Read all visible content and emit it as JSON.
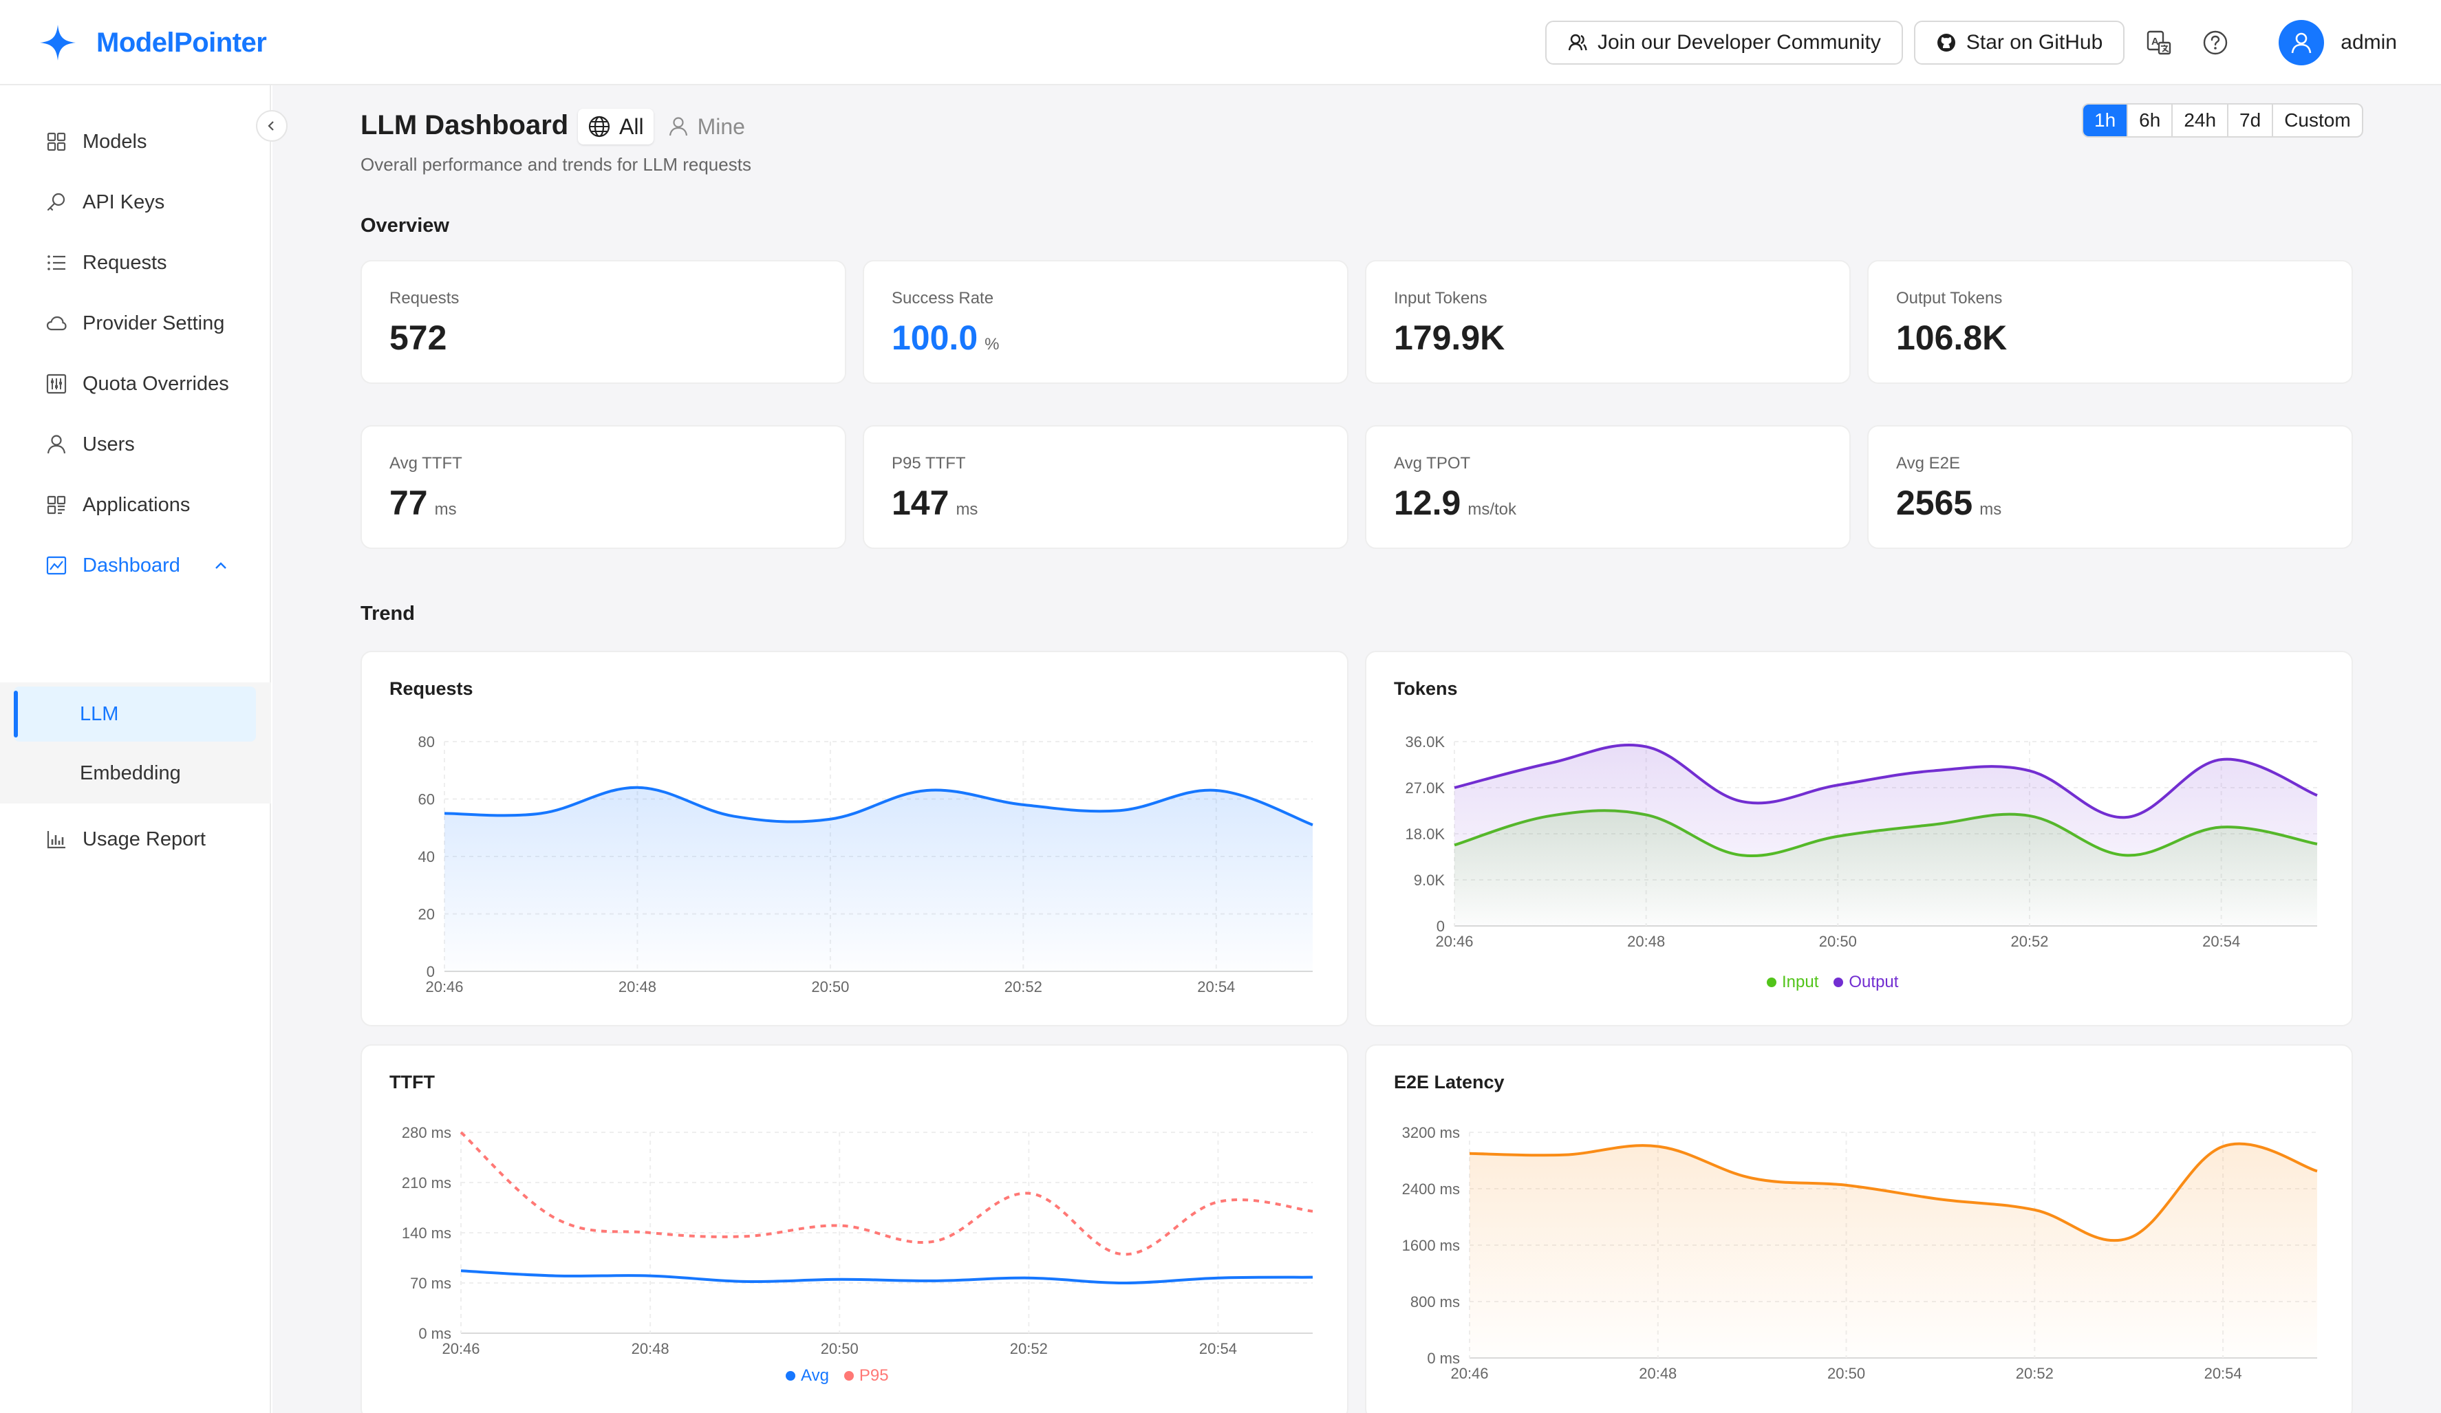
{
  "brand": {
    "name": "ModelPointer"
  },
  "header": {
    "community_label": "Join our Developer Community",
    "github_label": "Star on GitHub",
    "user_name": "admin"
  },
  "sidebar": {
    "items": [
      {
        "label": "Models",
        "icon": "grid-icon"
      },
      {
        "label": "API Keys",
        "icon": "key-icon"
      },
      {
        "label": "Requests",
        "icon": "list-icon"
      },
      {
        "label": "Provider Setting",
        "icon": "cloud-icon"
      },
      {
        "label": "Quota Overrides",
        "icon": "sliders-icon"
      },
      {
        "label": "Users",
        "icon": "user-icon"
      },
      {
        "label": "Applications",
        "icon": "apps-icon"
      },
      {
        "label": "Dashboard",
        "icon": "dashboard-icon"
      },
      {
        "label": "Usage Report",
        "icon": "bar-chart-icon"
      }
    ],
    "dashboard_children": [
      {
        "label": "LLM",
        "selected": true
      },
      {
        "label": "Embedding",
        "selected": false
      }
    ]
  },
  "page": {
    "title": "LLM Dashboard",
    "subtitle": "Overall performance and trends for LLM requests",
    "scope": {
      "all_label": "All",
      "mine_label": "Mine",
      "selected": "All"
    },
    "time_ranges": [
      "1h",
      "6h",
      "24h",
      "7d",
      "Custom"
    ],
    "selected_range": "1h"
  },
  "overview": {
    "title": "Overview",
    "stats": [
      {
        "label": "Requests",
        "value": "572",
        "unit": ""
      },
      {
        "label": "Success Rate",
        "value": "100.0",
        "unit": "%"
      },
      {
        "label": "Input Tokens",
        "value": "179.9K",
        "unit": ""
      },
      {
        "label": "Output Tokens",
        "value": "106.8K",
        "unit": ""
      },
      {
        "label": "Avg TTFT",
        "value": "77",
        "unit": "ms"
      },
      {
        "label": "P95 TTFT",
        "value": "147",
        "unit": "ms"
      },
      {
        "label": "Avg TPOT",
        "value": "12.9",
        "unit": "ms/tok"
      },
      {
        "label": "Avg E2E",
        "value": "2565",
        "unit": "ms"
      }
    ]
  },
  "trend": {
    "title": "Trend"
  },
  "colors": {
    "accent": "#1677ff",
    "requests": "#1677ff",
    "input": "#52c41a",
    "output": "#722ed1",
    "ttft_avg": "#1677ff",
    "ttft_p95": "#ff7875",
    "e2e": "#fa8c16"
  },
  "chart_data": [
    {
      "type": "area",
      "title": "Requests",
      "x": [
        "20:46",
        "20:47",
        "20:48",
        "20:49",
        "20:50",
        "20:51",
        "20:52",
        "20:53",
        "20:54",
        "20:55"
      ],
      "x_tick_labels": [
        "20:46",
        "20:48",
        "20:50",
        "20:52",
        "20:54"
      ],
      "y_tick_labels": [
        "0",
        "20",
        "40",
        "60",
        "80"
      ],
      "ylim": [
        0,
        80
      ],
      "series": [
        {
          "values": [
            55,
            55,
            64,
            54,
            53,
            63,
            58,
            56,
            63,
            51
          ]
        }
      ],
      "grid": true
    },
    {
      "type": "area",
      "title": "Tokens",
      "x": [
        "20:46",
        "20:47",
        "20:48",
        "20:49",
        "20:50",
        "20:51",
        "20:52",
        "20:53",
        "20:54",
        "20:55"
      ],
      "x_tick_labels": [
        "20:46",
        "20:48",
        "20:50",
        "20:52",
        "20:54"
      ],
      "y_tick_labels": [
        "0",
        "9.0K",
        "18.0K",
        "27.0K",
        "36.0K"
      ],
      "ylim": [
        0,
        36000
      ],
      "series": [
        {
          "name": "Input",
          "values": [
            15800,
            21500,
            21700,
            13800,
            17500,
            19800,
            21500,
            13800,
            19300,
            16000
          ]
        },
        {
          "name": "Output",
          "values": [
            27000,
            31800,
            35000,
            24300,
            27500,
            30300,
            30300,
            21200,
            32500,
            25500
          ]
        }
      ],
      "legend": "bottom",
      "grid": true
    },
    {
      "type": "line",
      "title": "TTFT",
      "x": [
        "20:46",
        "20:47",
        "20:48",
        "20:49",
        "20:50",
        "20:51",
        "20:52",
        "20:53",
        "20:54",
        "20:55"
      ],
      "x_tick_labels": [
        "20:46",
        "20:48",
        "20:50",
        "20:52",
        "20:54"
      ],
      "y_tick_labels": [
        "0 ms",
        "70 ms",
        "140 ms",
        "210 ms",
        "280 ms"
      ],
      "ylim": [
        0,
        280
      ],
      "series": [
        {
          "name": "Avg",
          "values": [
            87,
            80,
            80,
            72,
            75,
            73,
            77,
            70,
            77,
            78
          ]
        },
        {
          "name": "P95",
          "values": [
            280,
            160,
            140,
            135,
            150,
            128,
            195,
            110,
            183,
            170
          ]
        }
      ],
      "legend": "bottom",
      "grid": true
    },
    {
      "type": "area",
      "title": "E2E Latency",
      "x": [
        "20:46",
        "20:47",
        "20:48",
        "20:49",
        "20:50",
        "20:51",
        "20:52",
        "20:53",
        "20:54",
        "20:55"
      ],
      "x_tick_labels": [
        "20:46",
        "20:48",
        "20:50",
        "20:52",
        "20:54"
      ],
      "y_tick_labels": [
        "0 ms",
        "800 ms",
        "1600 ms",
        "2400 ms",
        "3200 ms"
      ],
      "ylim": [
        0,
        3200
      ],
      "series": [
        {
          "values": [
            2900,
            2880,
            3000,
            2550,
            2450,
            2250,
            2100,
            1700,
            3000,
            2650
          ]
        }
      ],
      "grid": true
    }
  ]
}
